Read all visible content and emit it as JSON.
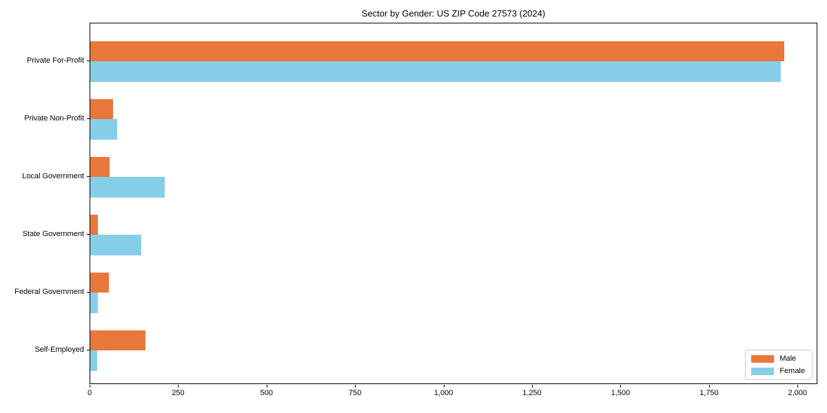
{
  "title": "Sector by Gender: US ZIP Code 27573 (2024)",
  "colors": {
    "male": "#e8773c",
    "female": "#87ceeb",
    "plot_border": "#000000",
    "legend_border": "#cccccc",
    "background": "#ffffff",
    "text": "#000000"
  },
  "legend": {
    "entries": [
      {
        "label": "Male",
        "color_key": "male"
      },
      {
        "label": "Female",
        "color_key": "female"
      }
    ]
  },
  "chart_data": {
    "type": "bar",
    "orientation": "horizontal",
    "title": "Sector by Gender: US ZIP Code 27573 (2024)",
    "categories": [
      "Private For-Profit",
      "Private Non-Profit",
      "Local Government",
      "State Government",
      "Federal Government",
      "Self-Employed"
    ],
    "series": [
      {
        "name": "Male",
        "color": "#e8773c",
        "values": [
          1960,
          65,
          55,
          22,
          52,
          155
        ]
      },
      {
        "name": "Female",
        "color": "#87ceeb",
        "values": [
          1950,
          75,
          210,
          145,
          22,
          20
        ]
      }
    ],
    "x_ticks": [
      0,
      250,
      500,
      750,
      1000,
      1250,
      1500,
      1750,
      2000
    ],
    "x_tick_labels": [
      "0",
      "250",
      "500",
      "750",
      "1,000",
      "1,250",
      "1,500",
      "1,750",
      "2,000"
    ],
    "xlim": [
      0,
      2056
    ],
    "xlabel": "",
    "ylabel": "",
    "grid": false,
    "legend_position": "lower right"
  }
}
